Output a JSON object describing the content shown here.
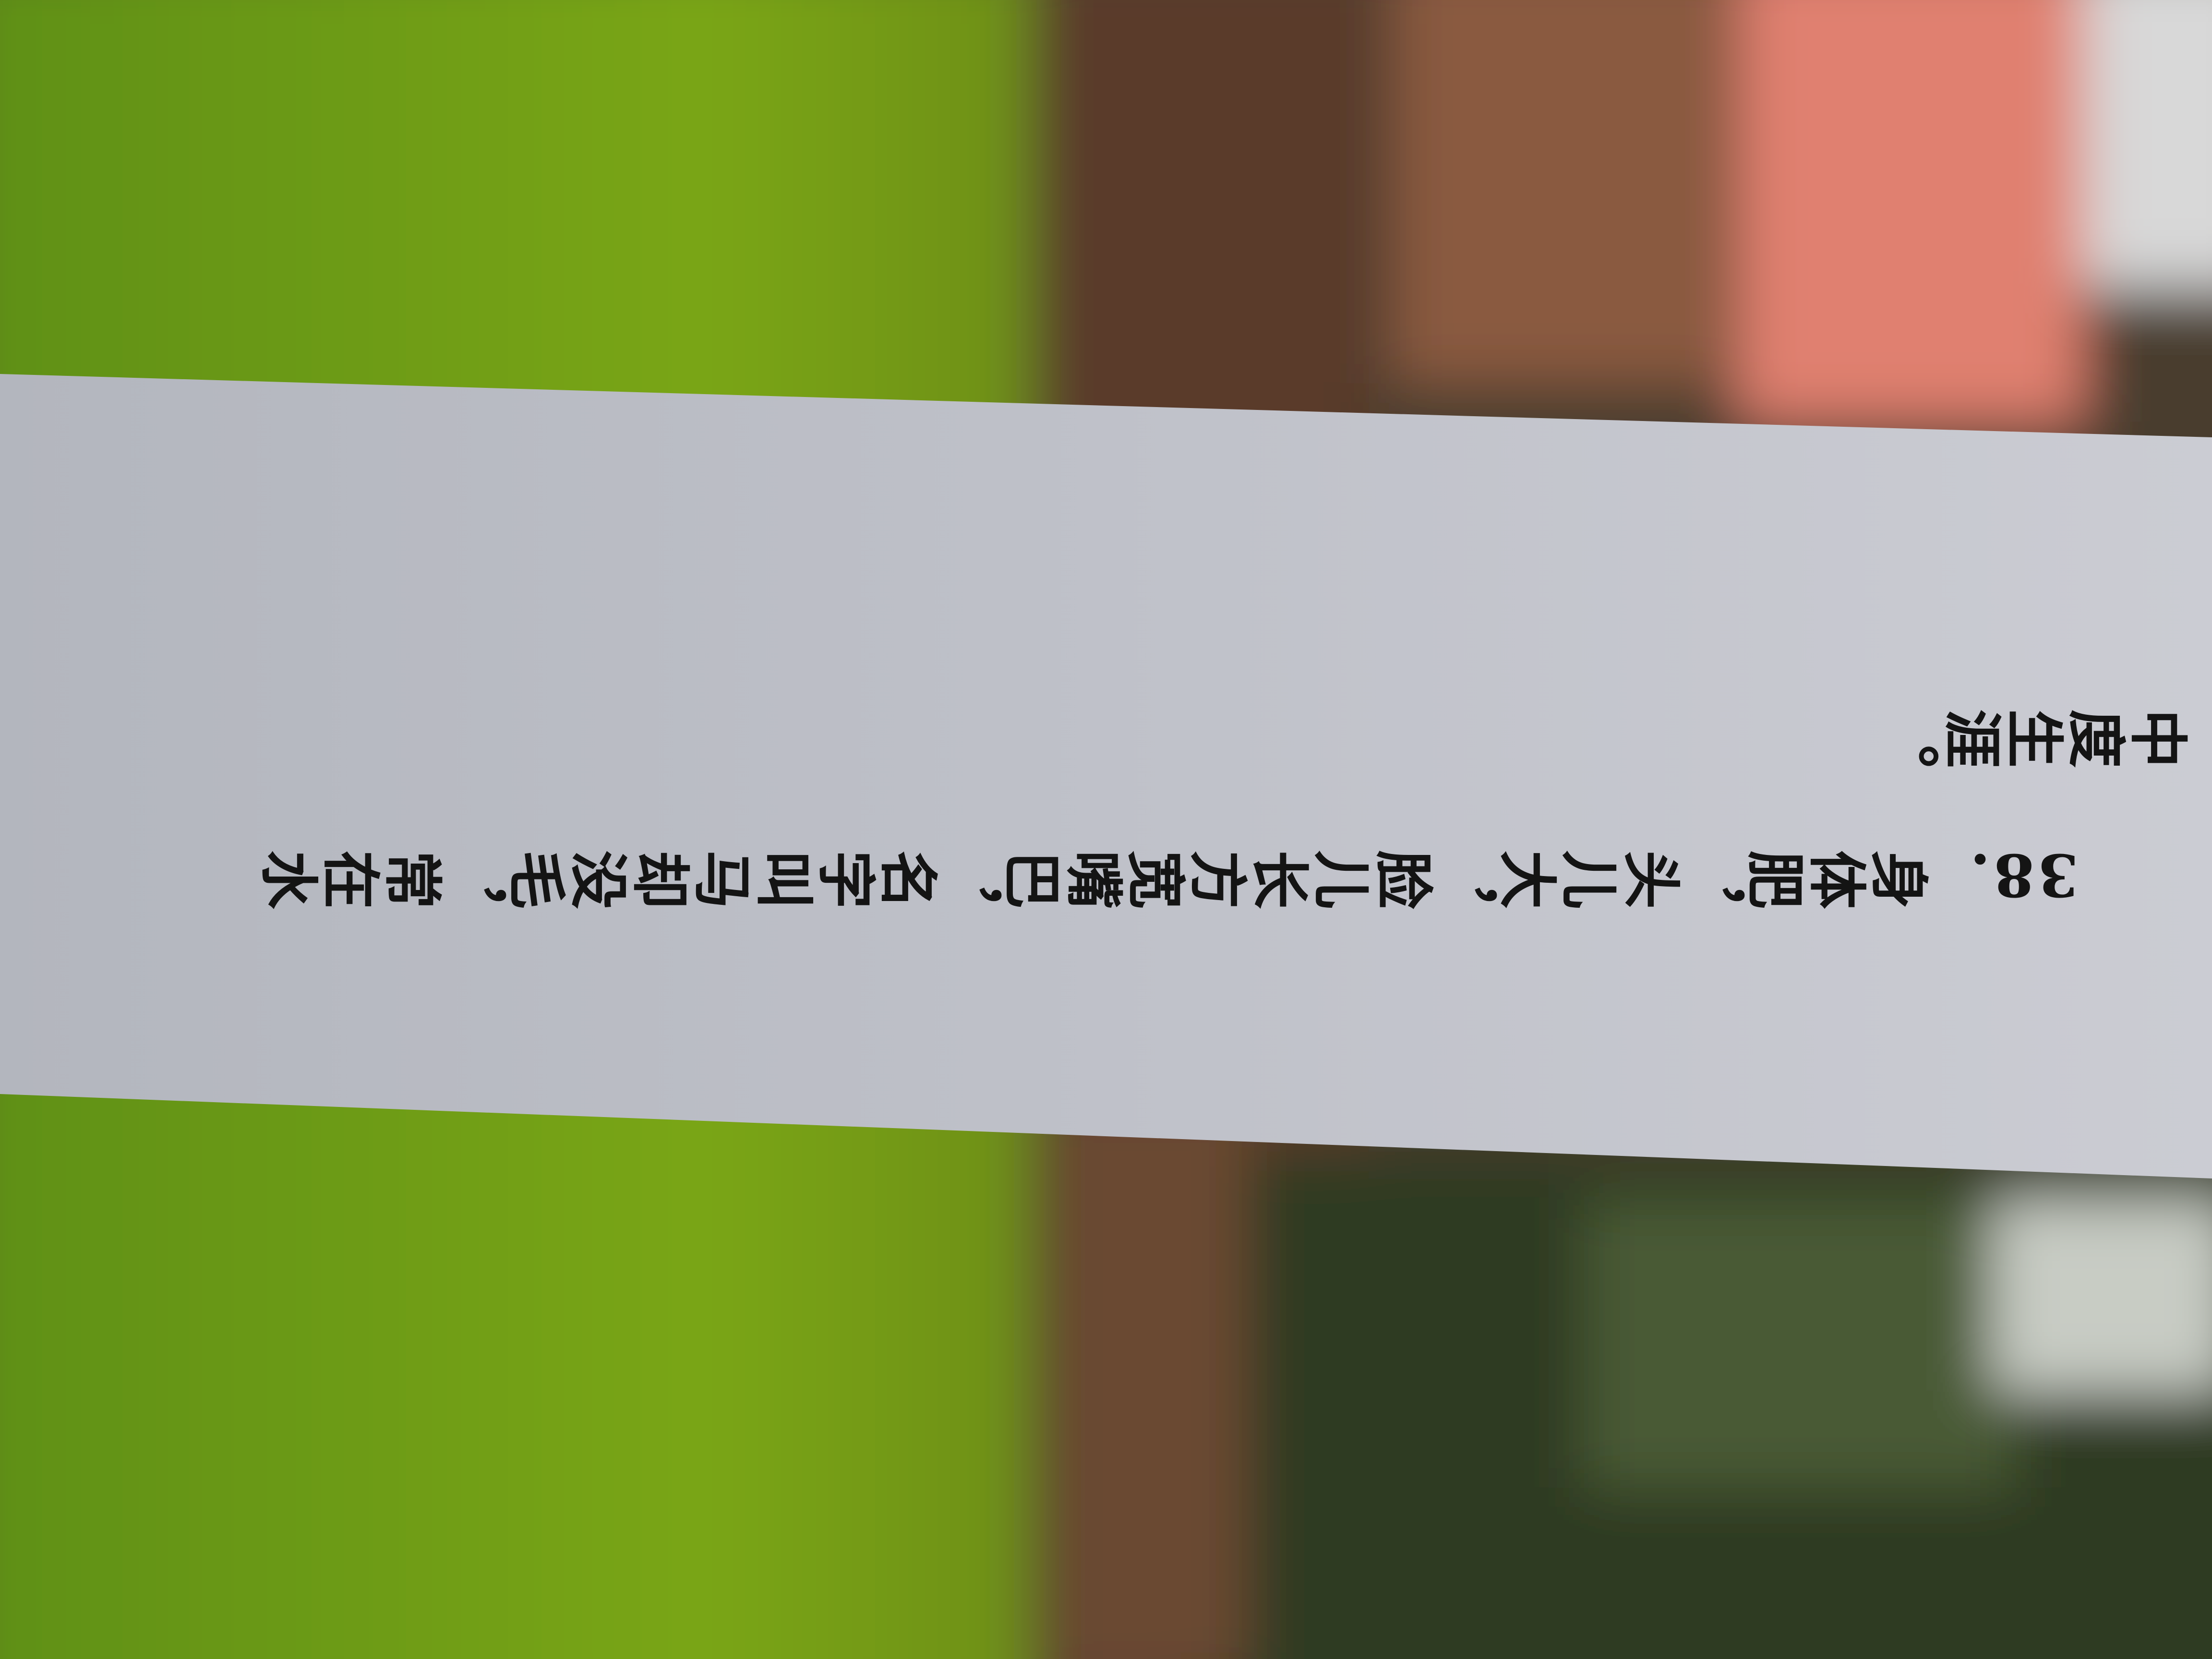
{
  "strip": {
    "number": "38.",
    "lines": [
      "身体肥，头儿大，脸儿长方宽嘴巴，名字叫马却没毛，常在水",
      "中度生涯。"
    ]
  }
}
